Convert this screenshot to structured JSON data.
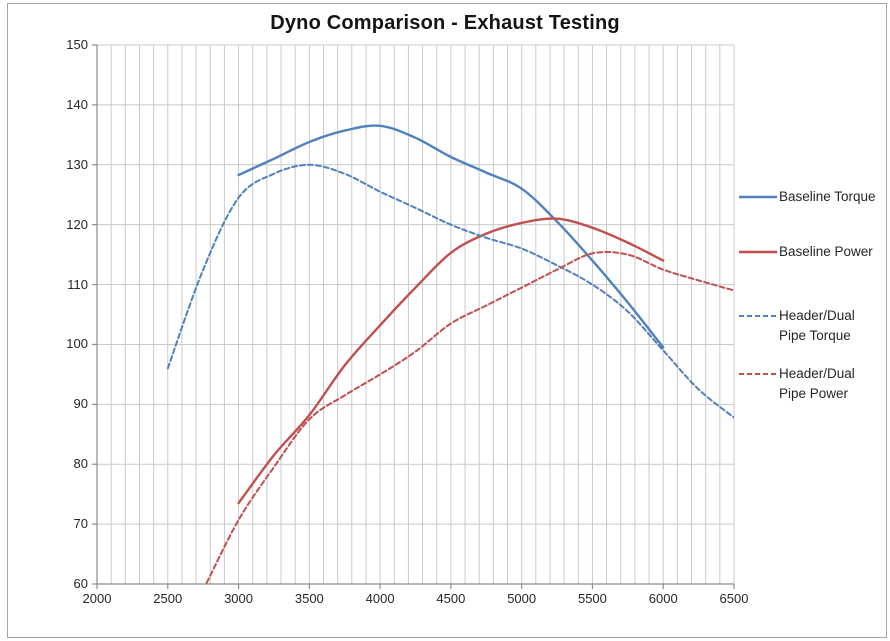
{
  "chart": {
    "colors": {
      "blue": "#4F81BD",
      "red": "#C0504D",
      "gridline": "#C9C9C9",
      "axis": "#8C8C8C",
      "tick_text": "#262626",
      "chart_border": "#A6A6A6"
    }
  },
  "chart_data": {
    "type": "line",
    "title": "Dyno Comparison - Exhaust Testing",
    "xlabel": "",
    "ylabel": "",
    "xlim": [
      2000,
      6500
    ],
    "ylim": [
      60,
      150
    ],
    "x_ticks": [
      "2000",
      "2500",
      "3000",
      "3500",
      "4000",
      "4500",
      "5000",
      "5500",
      "6000",
      "6500"
    ],
    "y_ticks": [
      "150",
      "140",
      "130",
      "120",
      "110",
      "100",
      "90",
      "80",
      "70",
      "60"
    ],
    "x_minor_grid_step": 100,
    "y_major_grid_step": 10,
    "grid": "on",
    "legend_position": "right",
    "series": [
      {
        "name": "Baseline Torque",
        "color": "#4F81BD",
        "style": "solid",
        "x": [
          3000,
          3250,
          3500,
          3750,
          4000,
          4250,
          4500,
          4750,
          5000,
          5250,
          5500,
          5750,
          6000
        ],
        "y": [
          128.3,
          131.0,
          133.8,
          135.7,
          136.5,
          134.5,
          131.3,
          128.7,
          126.0,
          120.5,
          114.0,
          107.0,
          99.5
        ]
      },
      {
        "name": "Baseline Power",
        "color": "#C0504D",
        "style": "solid",
        "x": [
          3000,
          3250,
          3500,
          3750,
          4000,
          4250,
          4500,
          4750,
          5000,
          5250,
          5500,
          5750,
          6000
        ],
        "y": [
          73.5,
          81.5,
          88.2,
          96.5,
          103.2,
          109.5,
          115.3,
          118.5,
          120.3,
          121.0,
          119.5,
          117.0,
          114.0
        ]
      },
      {
        "name": "Header/Dual Pipe Torque",
        "color": "#4F81BD",
        "style": "dashed",
        "x": [
          2500,
          2750,
          3000,
          3250,
          3500,
          3750,
          4000,
          4250,
          4500,
          4750,
          5000,
          5250,
          5500,
          5750,
          6000,
          6250,
          6500
        ],
        "y": [
          96.0,
          112.5,
          124.5,
          128.5,
          130.0,
          128.5,
          125.5,
          122.8,
          120.0,
          117.8,
          116.0,
          113.2,
          110.0,
          105.5,
          99.0,
          92.5,
          87.8
        ]
      },
      {
        "name": "Header/Dual Pipe Power",
        "color": "#C0504D",
        "style": "dashed",
        "x": [
          2750,
          3000,
          3250,
          3500,
          3750,
          4000,
          4250,
          4500,
          4750,
          5000,
          5250,
          5500,
          5750,
          6000,
          6250,
          6500
        ],
        "y": [
          59.0,
          70.7,
          79.5,
          87.5,
          91.5,
          95.0,
          98.8,
          103.5,
          106.5,
          109.5,
          112.5,
          115.2,
          115.0,
          112.5,
          110.7,
          109.0
        ]
      }
    ]
  }
}
